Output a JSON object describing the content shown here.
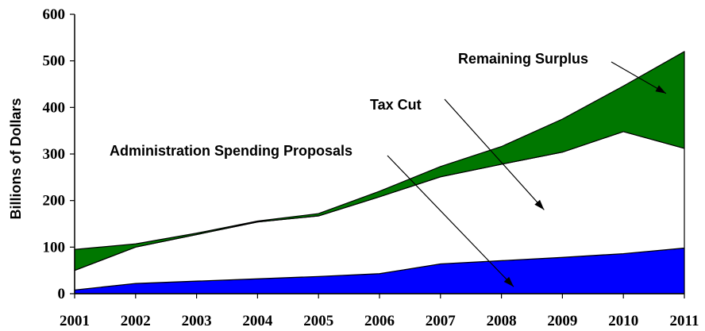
{
  "chart_data": {
    "type": "area",
    "ylabel": "Billions of Dollars",
    "xlabel": "",
    "ylim": [
      0,
      600
    ],
    "y_ticks": [
      0,
      100,
      200,
      300,
      400,
      500,
      600
    ],
    "x": [
      2001,
      2002,
      2003,
      2004,
      2005,
      2006,
      2007,
      2008,
      2009,
      2010,
      2011
    ],
    "series": [
      {
        "name": "Administration Spending Proposals",
        "color": "#0000ff",
        "values": [
          8,
          22,
          27,
          32,
          37,
          43,
          64,
          71,
          78,
          86,
          98
        ]
      },
      {
        "name": "Tax Cut",
        "color": "#ffffff",
        "values": [
          42,
          78,
          100,
          122,
          130,
          165,
          187,
          207,
          226,
          262,
          214
        ]
      },
      {
        "name": "Remaining Surplus",
        "color": "#007700",
        "values": [
          45,
          7,
          3,
          2,
          5,
          12,
          22,
          38,
          71,
          98,
          208
        ]
      }
    ],
    "annotations": [
      {
        "label": "Remaining Surplus",
        "arrow_to": [
          2010.7,
          430
        ]
      },
      {
        "label": "Tax Cut",
        "arrow_to": [
          2008.7,
          180
        ]
      },
      {
        "label": "Administration Spending Proposals",
        "arrow_to": [
          2008.2,
          15
        ]
      }
    ],
    "grid": false,
    "legend": "none"
  }
}
